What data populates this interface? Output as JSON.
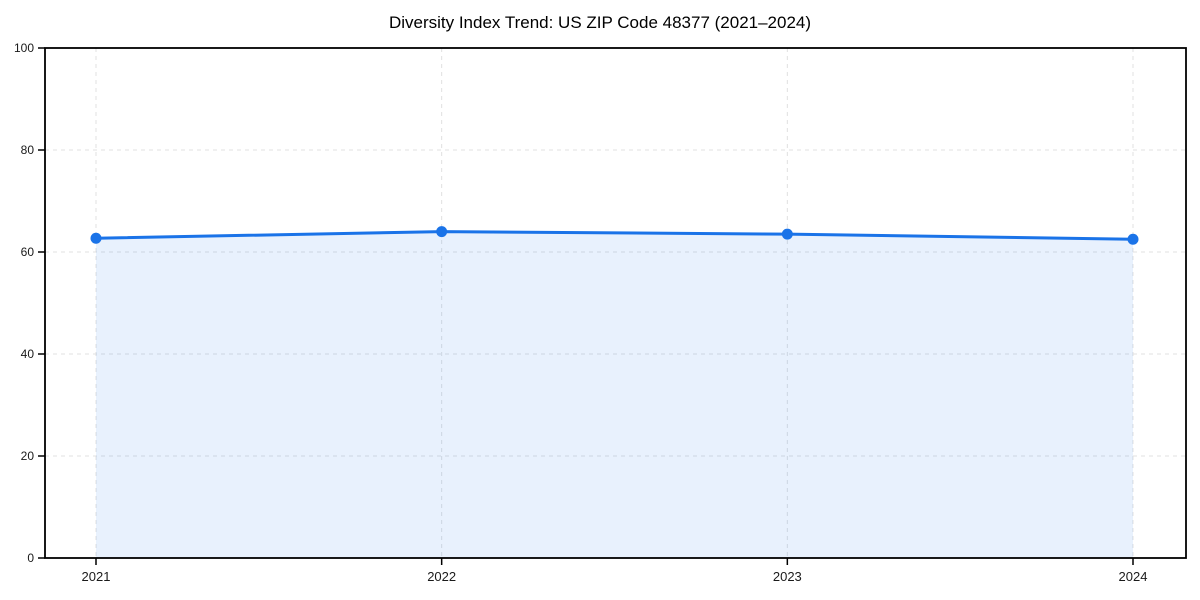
{
  "chart_data": {
    "type": "area",
    "title": "Diversity Index Trend: US ZIP Code 48377 (2021–2024)",
    "xlabel": "",
    "ylabel": "",
    "categories": [
      "2021",
      "2022",
      "2023",
      "2024"
    ],
    "series": [
      {
        "name": "Diversity Index",
        "values": [
          62.7,
          64.0,
          63.5,
          62.5
        ]
      }
    ],
    "ylim": [
      0,
      100
    ],
    "yticks": [
      0,
      20,
      40,
      60,
      80,
      100
    ],
    "grid": "dashed, horizontal and vertical, light gray",
    "legend": "none",
    "colors": {
      "line": "#1a73e8",
      "marker": "#1a73e8",
      "area_fill": "#1a73e8",
      "area_fill_opacity": "0.10",
      "grid": "#e0e0e0",
      "axis": "#000000",
      "tick_text": "#1a1a1a",
      "title_text": "#000000",
      "background": "#ffffff"
    }
  }
}
